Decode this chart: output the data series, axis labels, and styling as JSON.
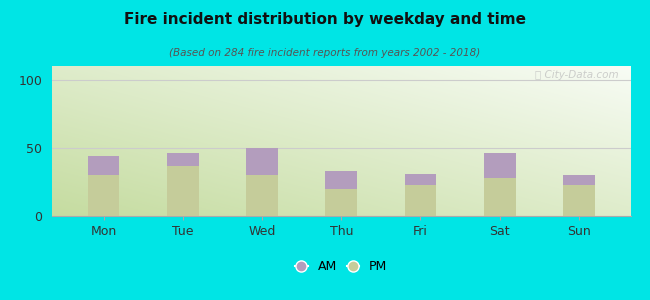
{
  "categories": [
    "Mon",
    "Tue",
    "Wed",
    "Thu",
    "Fri",
    "Sat",
    "Sun"
  ],
  "pm_values": [
    30,
    37,
    30,
    20,
    23,
    28,
    23
  ],
  "am_values": [
    14,
    9,
    20,
    13,
    8,
    18,
    7
  ],
  "am_color": "#b39dbd",
  "pm_color": "#c5cc9a",
  "title": "Fire incident distribution by weekday and time",
  "subtitle": "(Based on 284 fire incident reports from years 2002 - 2018)",
  "ylim": [
    0,
    110
  ],
  "yticks": [
    0,
    50,
    100
  ],
  "background_color": "#00e5e5",
  "watermark": "Ⓣ City-Data.com",
  "bar_width": 0.4
}
